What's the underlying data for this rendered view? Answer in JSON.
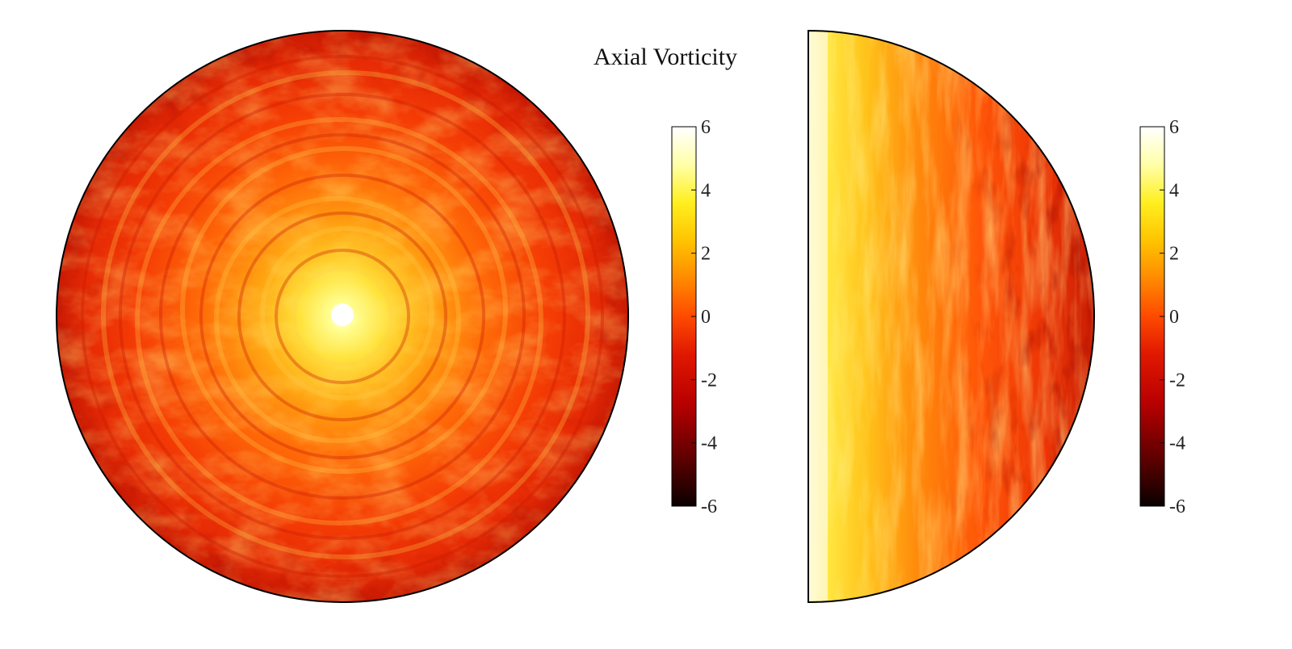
{
  "chart_data": [
    {
      "type": "heatmap",
      "title": "Axial Vorticity",
      "view": "horizontal cross-section (disk)",
      "colormap": "hot",
      "colorbar": {
        "ticks": [
          "6",
          "4",
          "2",
          "0",
          "-2",
          "-4",
          "-6"
        ],
        "range": [
          -6,
          6
        ]
      }
    },
    {
      "type": "heatmap",
      "view": "meridional half-section",
      "colormap": "hot",
      "colorbar": {
        "ticks": [
          "6",
          "4",
          "2",
          "0",
          "-2",
          "-4",
          "-6"
        ],
        "range": [
          -6,
          6
        ]
      }
    }
  ],
  "colors": {
    "hot_stops": [
      "#0a0000",
      "#5a0000",
      "#b80000",
      "#e01800",
      "#ff4a00",
      "#ff8a00",
      "#ffc400",
      "#ffef20",
      "#ffffa8",
      "#ffffff"
    ]
  }
}
